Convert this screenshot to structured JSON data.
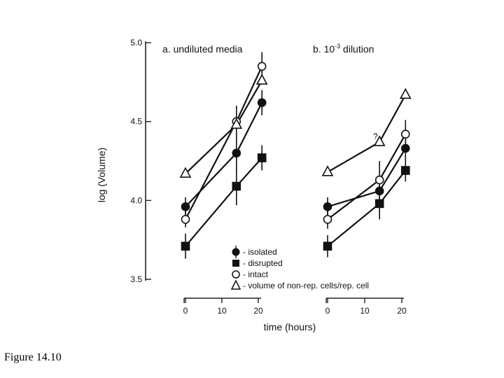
{
  "caption": "Figure 14.10",
  "chart_data": {
    "type": "line",
    "ylabel": "log (Volume)",
    "xlabel": "time (hours)",
    "ylim": [
      3.5,
      5.0
    ],
    "yticks": [
      "3.5",
      "4.0",
      "4.5",
      "5.0"
    ],
    "xlim": [
      0,
      20
    ],
    "xticks": [
      "0",
      "10",
      "20"
    ],
    "grid": false,
    "legend": {
      "placement": "bottom-center",
      "entries": [
        {
          "marker": "filled-circle",
          "label": "- isolated"
        },
        {
          "marker": "filled-square",
          "label": "- disrupted"
        },
        {
          "marker": "open-circle",
          "label": "- intact"
        },
        {
          "marker": "open-triangle",
          "label": "- volume of non-rep. cells/rep. cell"
        }
      ]
    },
    "panels": [
      {
        "title": "a. undiluted media",
        "annotation": "",
        "series": [
          {
            "name": "isolated",
            "marker": "filled-circle",
            "x": [
              0,
              14,
              21
            ],
            "y": [
              3.96,
              4.3,
              4.62
            ],
            "err": [
              0.06,
              0.12,
              0.08
            ]
          },
          {
            "name": "disrupted",
            "marker": "filled-square",
            "x": [
              0,
              14,
              21
            ],
            "y": [
              3.71,
              4.09,
              4.27
            ],
            "err": [
              0.08,
              0.12,
              0.08
            ]
          },
          {
            "name": "intact",
            "marker": "open-circle",
            "x": [
              0,
              14,
              21
            ],
            "y": [
              3.88,
              4.5,
              4.85
            ],
            "err": [
              0.05,
              0.1,
              0.09
            ]
          },
          {
            "name": "volume of non-rep. cells/rep. cell",
            "marker": "open-triangle",
            "x": [
              0,
              14,
              21
            ],
            "y": [
              4.17,
              4.48,
              4.76
            ],
            "err": [
              0,
              0,
              0
            ]
          }
        ]
      },
      {
        "title_main": "b. 10",
        "title_sup": "-3",
        "title_rest": " dilution",
        "annotation": "?",
        "series": [
          {
            "name": "isolated",
            "marker": "filled-circle",
            "x": [
              0,
              14,
              21
            ],
            "y": [
              3.96,
              4.06,
              4.33
            ],
            "err": [
              0.06,
              0.08,
              0.08
            ]
          },
          {
            "name": "disrupted",
            "marker": "filled-square",
            "x": [
              0,
              14,
              21
            ],
            "y": [
              3.71,
              3.98,
              4.19
            ],
            "err": [
              0.07,
              0.1,
              0.07
            ]
          },
          {
            "name": "intact",
            "marker": "open-circle",
            "x": [
              0,
              14,
              21
            ],
            "y": [
              3.88,
              4.13,
              4.42
            ],
            "err": [
              0.06,
              0.12,
              0.09
            ]
          },
          {
            "name": "volume of non-rep. cells/rep. cell",
            "marker": "open-triangle",
            "x": [
              0,
              14,
              21
            ],
            "y": [
              4.18,
              4.37,
              4.67
            ],
            "err": [
              0,
              0,
              0
            ]
          }
        ]
      }
    ]
  }
}
